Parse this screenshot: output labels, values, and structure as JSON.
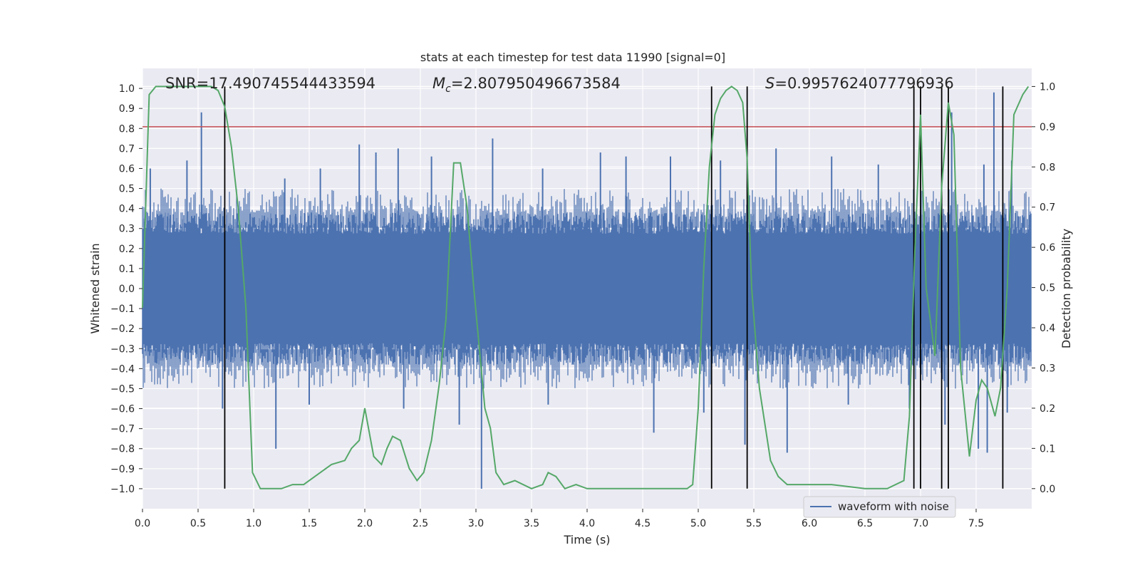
{
  "chart_data": {
    "type": "line",
    "title": "stats at each timestep for test data 11990 [signal=0]",
    "xlabel": "Time (s)",
    "ylabel_left": "Whitened strain",
    "ylabel_right": "Detection probability",
    "xlim": [
      0.0,
      8.0
    ],
    "ylim_left": [
      -1.1,
      1.1
    ],
    "ylim_right": [
      -0.05,
      1.045
    ],
    "grid": true,
    "legend_position": "lower-right",
    "x_ticks": [
      "0.0",
      "0.5",
      "1.0",
      "1.5",
      "2.0",
      "2.5",
      "3.0",
      "3.5",
      "4.0",
      "4.5",
      "5.0",
      "5.5",
      "6.0",
      "6.5",
      "7.0",
      "7.5"
    ],
    "x_tick_values": [
      0.0,
      0.5,
      1.0,
      1.5,
      2.0,
      2.5,
      3.0,
      3.5,
      4.0,
      4.5,
      5.0,
      5.5,
      6.0,
      6.5,
      7.0,
      7.5
    ],
    "y_left_ticks": [
      "1.0",
      "0.9",
      "0.8",
      "0.7",
      "0.6",
      "0.5",
      "0.4",
      "0.3",
      "0.2",
      "0.1",
      "0.0",
      "−0.1",
      "−0.2",
      "−0.3",
      "−0.4",
      "−0.5",
      "−0.6",
      "−0.7",
      "−0.8",
      "−0.9",
      "−1.0"
    ],
    "y_left_tick_values": [
      1.0,
      0.9,
      0.8,
      0.7,
      0.6,
      0.5,
      0.4,
      0.3,
      0.2,
      0.1,
      0.0,
      -0.1,
      -0.2,
      -0.3,
      -0.4,
      -0.5,
      -0.6,
      -0.7,
      -0.8,
      -0.9,
      -1.0
    ],
    "y_right_ticks": [
      "1.0",
      "0.9",
      "0.8",
      "0.7",
      "0.6",
      "0.5",
      "0.4",
      "0.3",
      "0.2",
      "0.1",
      "0.0"
    ],
    "y_right_tick_values": [
      1.0,
      0.9,
      0.8,
      0.7,
      0.6,
      0.5,
      0.4,
      0.3,
      0.2,
      0.1,
      0.0
    ],
    "annotations": {
      "snr": "SNR=17.490745544433594",
      "mc_symbol": "M",
      "mc_subscript": "c",
      "mc_value": "=2.807950496673584",
      "s_symbol": "S",
      "s_value": "=0.9957624077796936"
    },
    "threshold": {
      "value": 0.9,
      "axis": "right",
      "color": "#c44e52"
    },
    "detection_markers": [
      0.74,
      5.12,
      5.44,
      6.94,
      7.0,
      7.19,
      7.25,
      7.74
    ],
    "series": [
      {
        "name": "waveform with noise",
        "axis": "left",
        "color": "#4c72b0",
        "kind": "noise-band",
        "typical_amplitude": 0.38,
        "peak_positive": [
          [
            0.53,
            0.88
          ],
          [
            0.07,
            0.6
          ],
          [
            0.4,
            0.64
          ],
          [
            1.28,
            0.55
          ],
          [
            1.6,
            0.6
          ],
          [
            1.95,
            0.72
          ],
          [
            2.1,
            0.68
          ],
          [
            2.3,
            0.7
          ],
          [
            2.6,
            0.66
          ],
          [
            3.15,
            0.75
          ],
          [
            3.6,
            0.6
          ],
          [
            4.12,
            0.68
          ],
          [
            4.35,
            0.66
          ],
          [
            4.75,
            0.66
          ],
          [
            5.2,
            0.64
          ],
          [
            5.7,
            0.7
          ],
          [
            6.2,
            0.66
          ],
          [
            6.62,
            0.62
          ],
          [
            7.28,
            0.88
          ],
          [
            7.57,
            0.62
          ],
          [
            7.66,
            0.98
          ],
          [
            7.82,
            0.64
          ]
        ],
        "peak_negative": [
          [
            0.72,
            -0.6
          ],
          [
            1.2,
            -0.8
          ],
          [
            1.5,
            -0.58
          ],
          [
            2.35,
            -0.6
          ],
          [
            2.85,
            -0.68
          ],
          [
            3.05,
            -1.0
          ],
          [
            3.65,
            -0.58
          ],
          [
            4.6,
            -0.72
          ],
          [
            5.05,
            -0.62
          ],
          [
            5.42,
            -0.78
          ],
          [
            5.8,
            -0.82
          ],
          [
            6.35,
            -0.58
          ],
          [
            6.9,
            -0.6
          ],
          [
            7.22,
            -0.68
          ],
          [
            7.52,
            -0.8
          ],
          [
            7.6,
            -0.82
          ],
          [
            7.78,
            -0.62
          ]
        ]
      },
      {
        "name": "detection probability",
        "axis": "right",
        "color": "#55a868",
        "x": [
          0.0,
          0.06,
          0.12,
          0.25,
          0.4,
          0.55,
          0.62,
          0.68,
          0.74,
          0.8,
          0.86,
          0.93,
          0.99,
          1.06,
          1.25,
          1.35,
          1.45,
          1.55,
          1.7,
          1.82,
          1.88,
          1.95,
          2.0,
          2.08,
          2.15,
          2.2,
          2.25,
          2.32,
          2.4,
          2.47,
          2.53,
          2.6,
          2.67,
          2.73,
          2.8,
          2.86,
          2.92,
          2.98,
          3.03,
          3.08,
          3.13,
          3.18,
          3.25,
          3.35,
          3.5,
          3.6,
          3.65,
          3.72,
          3.8,
          3.9,
          4.0,
          4.2,
          4.5,
          4.9,
          4.95,
          5.0,
          5.05,
          5.1,
          5.15,
          5.2,
          5.25,
          5.3,
          5.35,
          5.4,
          5.44,
          5.48,
          5.55,
          5.65,
          5.72,
          5.8,
          6.0,
          6.2,
          6.5,
          6.7,
          6.85,
          6.9,
          6.95,
          7.0,
          7.05,
          7.13,
          7.19,
          7.25,
          7.3,
          7.36,
          7.44,
          7.5,
          7.55,
          7.6,
          7.67,
          7.72,
          7.78,
          7.84,
          7.92,
          7.97
        ],
        "y": [
          0.45,
          0.98,
          1.0,
          1.0,
          1.0,
          1.0,
          1.0,
          0.99,
          0.95,
          0.85,
          0.7,
          0.45,
          0.04,
          0.0,
          0.0,
          0.01,
          0.01,
          0.03,
          0.06,
          0.07,
          0.1,
          0.12,
          0.2,
          0.08,
          0.06,
          0.1,
          0.13,
          0.12,
          0.05,
          0.02,
          0.04,
          0.12,
          0.26,
          0.42,
          0.81,
          0.81,
          0.7,
          0.5,
          0.35,
          0.2,
          0.15,
          0.04,
          0.01,
          0.02,
          0.0,
          0.01,
          0.04,
          0.03,
          0.0,
          0.01,
          0.0,
          0.0,
          0.0,
          0.0,
          0.01,
          0.2,
          0.55,
          0.8,
          0.93,
          0.97,
          0.99,
          1.0,
          0.99,
          0.96,
          0.82,
          0.5,
          0.25,
          0.07,
          0.03,
          0.01,
          0.01,
          0.01,
          0.0,
          0.0,
          0.02,
          0.18,
          0.6,
          0.93,
          0.5,
          0.33,
          0.75,
          0.96,
          0.88,
          0.3,
          0.08,
          0.22,
          0.27,
          0.25,
          0.18,
          0.25,
          0.5,
          0.93,
          0.98,
          1.0
        ]
      }
    ]
  }
}
